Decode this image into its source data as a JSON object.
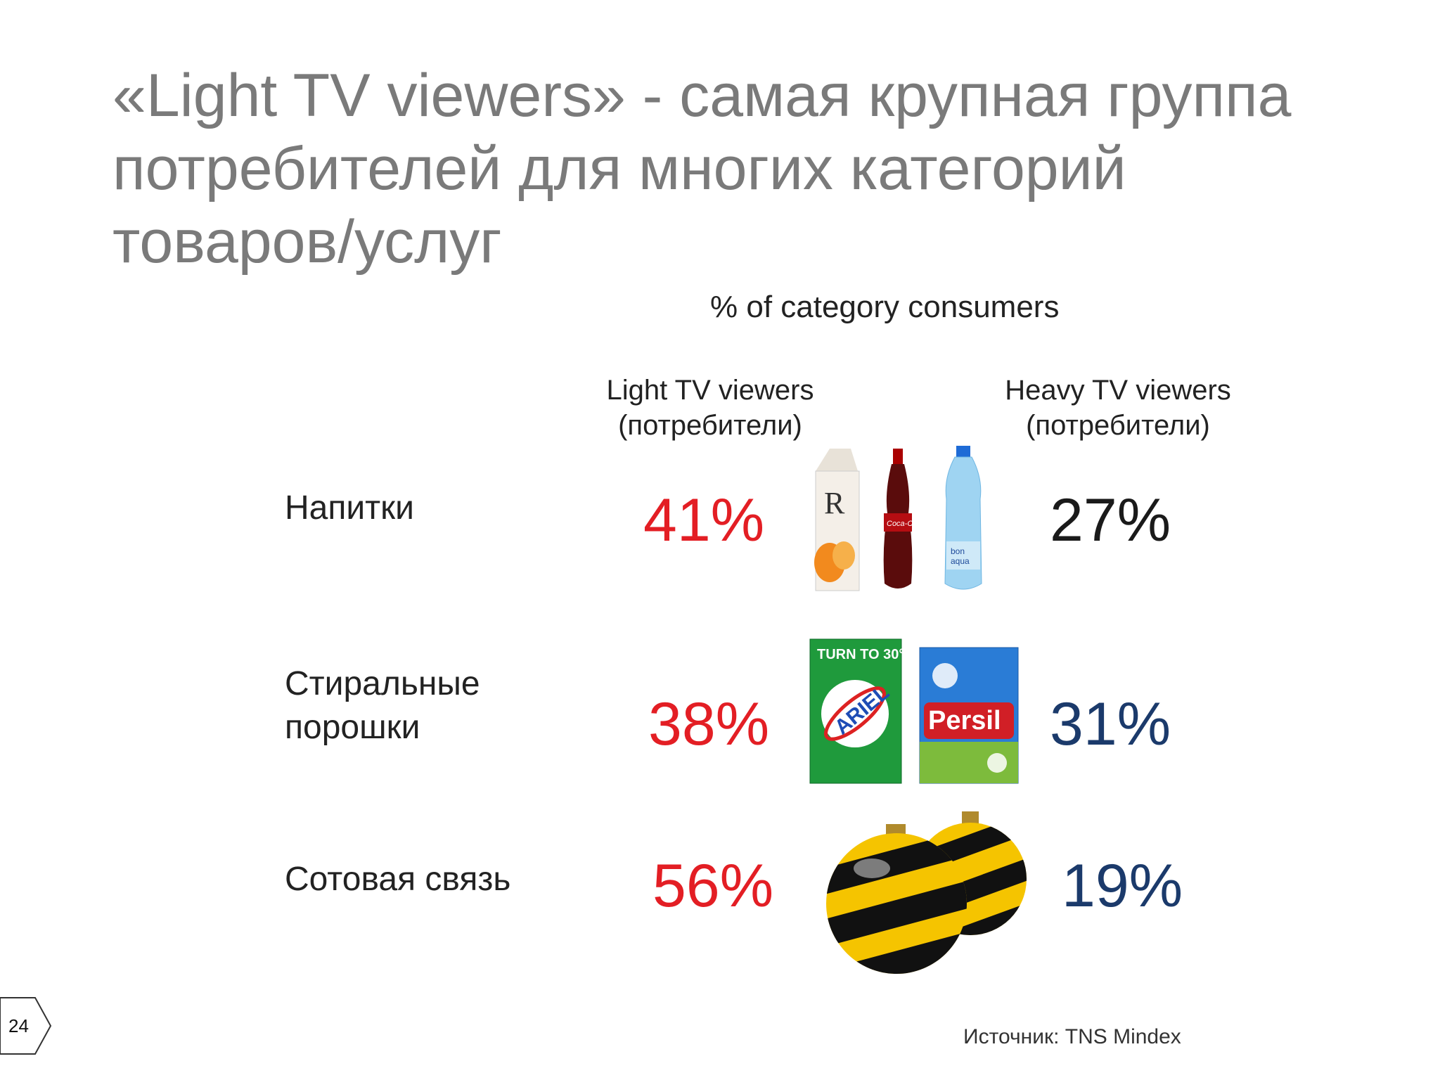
{
  "title": {
    "lines": [
      "«Light TV viewers» - самая крупная группа",
      "потребителей для многих категорий",
      "товаров/услуг"
    ]
  },
  "subtitle": "% of category consumers",
  "columns": {
    "light": {
      "line1": "Light TV viewers",
      "line2": "(потребители)"
    },
    "heavy": {
      "line1": "Heavy TV viewers",
      "line2": "(потребители)"
    }
  },
  "rows": [
    {
      "label_lines": [
        "Напитки"
      ],
      "light": "41%",
      "heavy": "27%",
      "heavy_color": "#1a1a1a",
      "products": [
        "juice-carton",
        "cola-bottle",
        "water-bottle"
      ]
    },
    {
      "label_lines": [
        "Стиральные",
        "порошки"
      ],
      "light": "38%",
      "heavy": "31%",
      "heavy_color": "#1b3a6b",
      "products": [
        "ariel-box",
        "persil-box"
      ],
      "product_text": {
        "ariel_top": "TURN TO 30°",
        "ariel": "ARIEL",
        "persil": "Persil"
      }
    },
    {
      "label_lines": [
        "Сотовая связь"
      ],
      "light": "56%",
      "heavy": "19%",
      "heavy_color": "#1b3a6b",
      "products": [
        "beeline-ornaments"
      ]
    }
  ],
  "colors": {
    "light_pct": "#e31e24",
    "title": "#7a7a7a"
  },
  "source": "Источник: TNS Mindex",
  "page_number": "24"
}
